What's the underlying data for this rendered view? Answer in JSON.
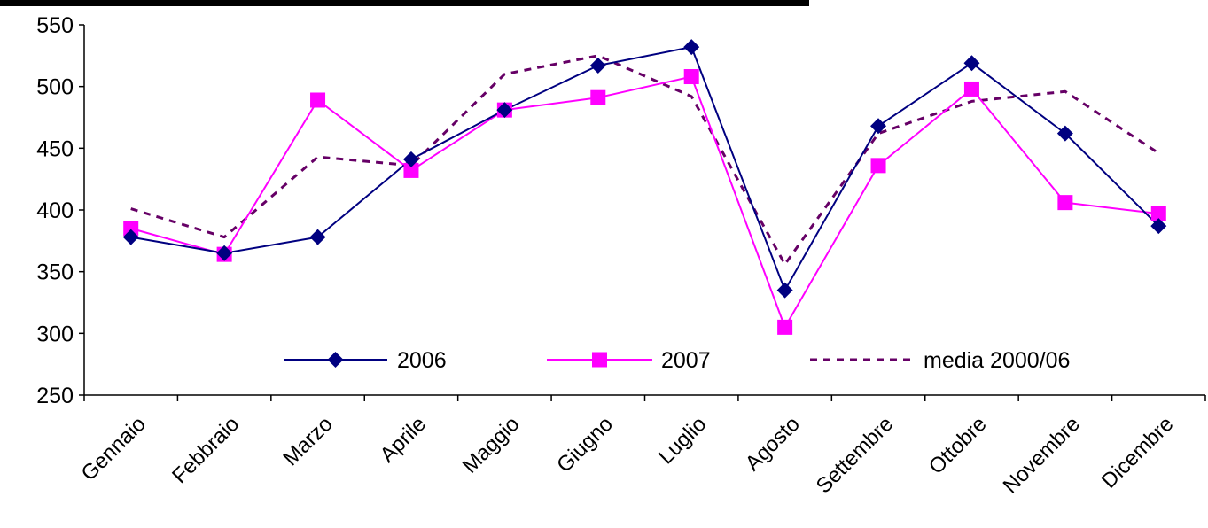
{
  "chart_data": {
    "type": "line",
    "title": "",
    "xlabel": "",
    "ylabel": "",
    "categories": [
      "Gennaio",
      "Febbraio",
      "Marzo",
      "Aprile",
      "Maggio",
      "Giugno",
      "Luglio",
      "Agosto",
      "Settembre",
      "Ottobre",
      "Novembre",
      "Dicembre"
    ],
    "ylim": [
      250,
      550
    ],
    "yticks": [
      "250",
      "300",
      "350",
      "400",
      "450",
      "500",
      "550"
    ],
    "grid": false,
    "legend": "inside-bottom",
    "series": [
      {
        "name": "2006",
        "color": "#000080",
        "marker": "diamond",
        "dash": "solid",
        "values": [
          378,
          365,
          378,
          441,
          481,
          517,
          532,
          335,
          468,
          519,
          462,
          387
        ]
      },
      {
        "name": "2007",
        "color": "#FF00FF",
        "marker": "square",
        "dash": "solid",
        "values": [
          385,
          364,
          489,
          432,
          481,
          491,
          508,
          305,
          436,
          498,
          406,
          397
        ]
      },
      {
        "name": "media 2000/06",
        "color": "#660066",
        "marker": "none",
        "dash": "dashed",
        "values": [
          401,
          378,
          443,
          436,
          510,
          525,
          492,
          356,
          462,
          488,
          496,
          446
        ]
      }
    ]
  }
}
